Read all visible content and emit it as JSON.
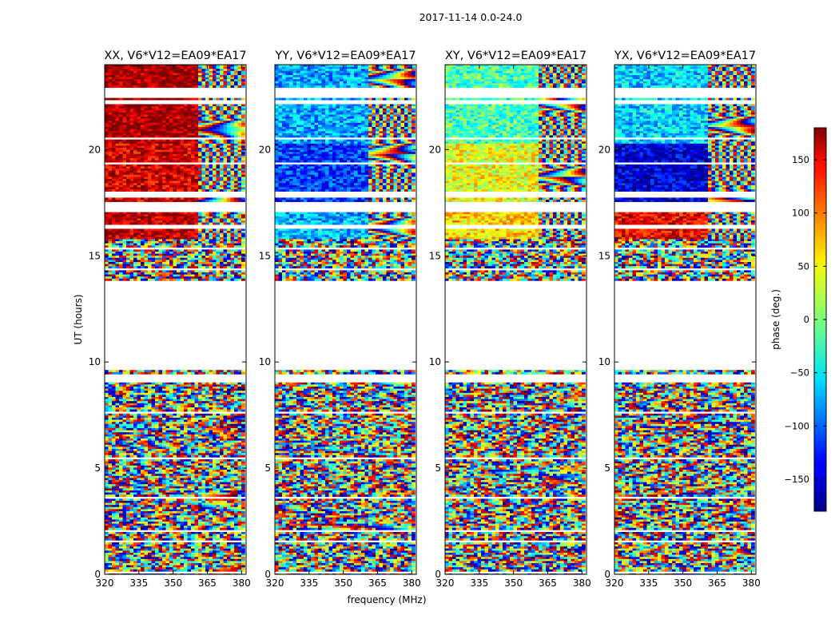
{
  "figure": {
    "suptitle": "2017-11-14 0.0-24.0",
    "xlabel": "frequency (MHz)",
    "ylabel": "UT (hours)"
  },
  "chart_data": {
    "type": "heatmap",
    "x_range": [
      320,
      382
    ],
    "y_range": [
      0,
      24
    ],
    "x_ticks": [
      320,
      335,
      350,
      365,
      380
    ],
    "y_ticks": [
      0,
      5,
      10,
      15,
      20
    ],
    "no_data_ut_ranges": [
      [
        0.08,
        0.14
      ],
      [
        0.5,
        0.56
      ],
      [
        1.52,
        1.6
      ],
      [
        2.02,
        2.08
      ],
      [
        3.55,
        3.62
      ],
      [
        5.1,
        5.16
      ],
      [
        5.42,
        5.48
      ],
      [
        6.55,
        6.62
      ],
      [
        7.6,
        7.66
      ],
      [
        8.72,
        8.78
      ],
      [
        9.05,
        9.4
      ],
      [
        9.6,
        13.8
      ],
      [
        14.35,
        14.4
      ],
      [
        15.32,
        15.4
      ],
      [
        16.3,
        16.5
      ],
      [
        17.02,
        17.55
      ],
      [
        17.75,
        18.0
      ],
      [
        19.35,
        19.42
      ],
      [
        20.45,
        20.55
      ],
      [
        22.15,
        22.3
      ],
      [
        22.4,
        22.95
      ]
    ],
    "colorbar": {
      "label": "phase (deg.)",
      "range": [
        -180,
        180
      ],
      "ticks": [
        -150,
        -100,
        -50,
        0,
        50,
        100,
        150
      ],
      "colormap": "jet"
    },
    "panels": [
      {
        "title": "XX, V6*V12=EA09*EA17",
        "ut_17_20_phase": 150,
        "ut_20_24_phase": 170,
        "ut_14_17_phase": 160
      },
      {
        "title": "YY, V6*V12=EA09*EA17",
        "ut_17_20_phase": -115,
        "ut_20_24_phase": -75,
        "ut_14_17_phase": -70
      },
      {
        "title": "XY, V6*V12=EA09*EA17",
        "ut_17_20_phase": 40,
        "ut_20_24_phase": -20,
        "ut_14_17_phase": 60
      },
      {
        "title": "YX, V6*V12=EA09*EA17",
        "ut_17_20_phase": -150,
        "ut_20_24_phase": -60,
        "ut_14_17_phase": 140
      }
    ]
  }
}
